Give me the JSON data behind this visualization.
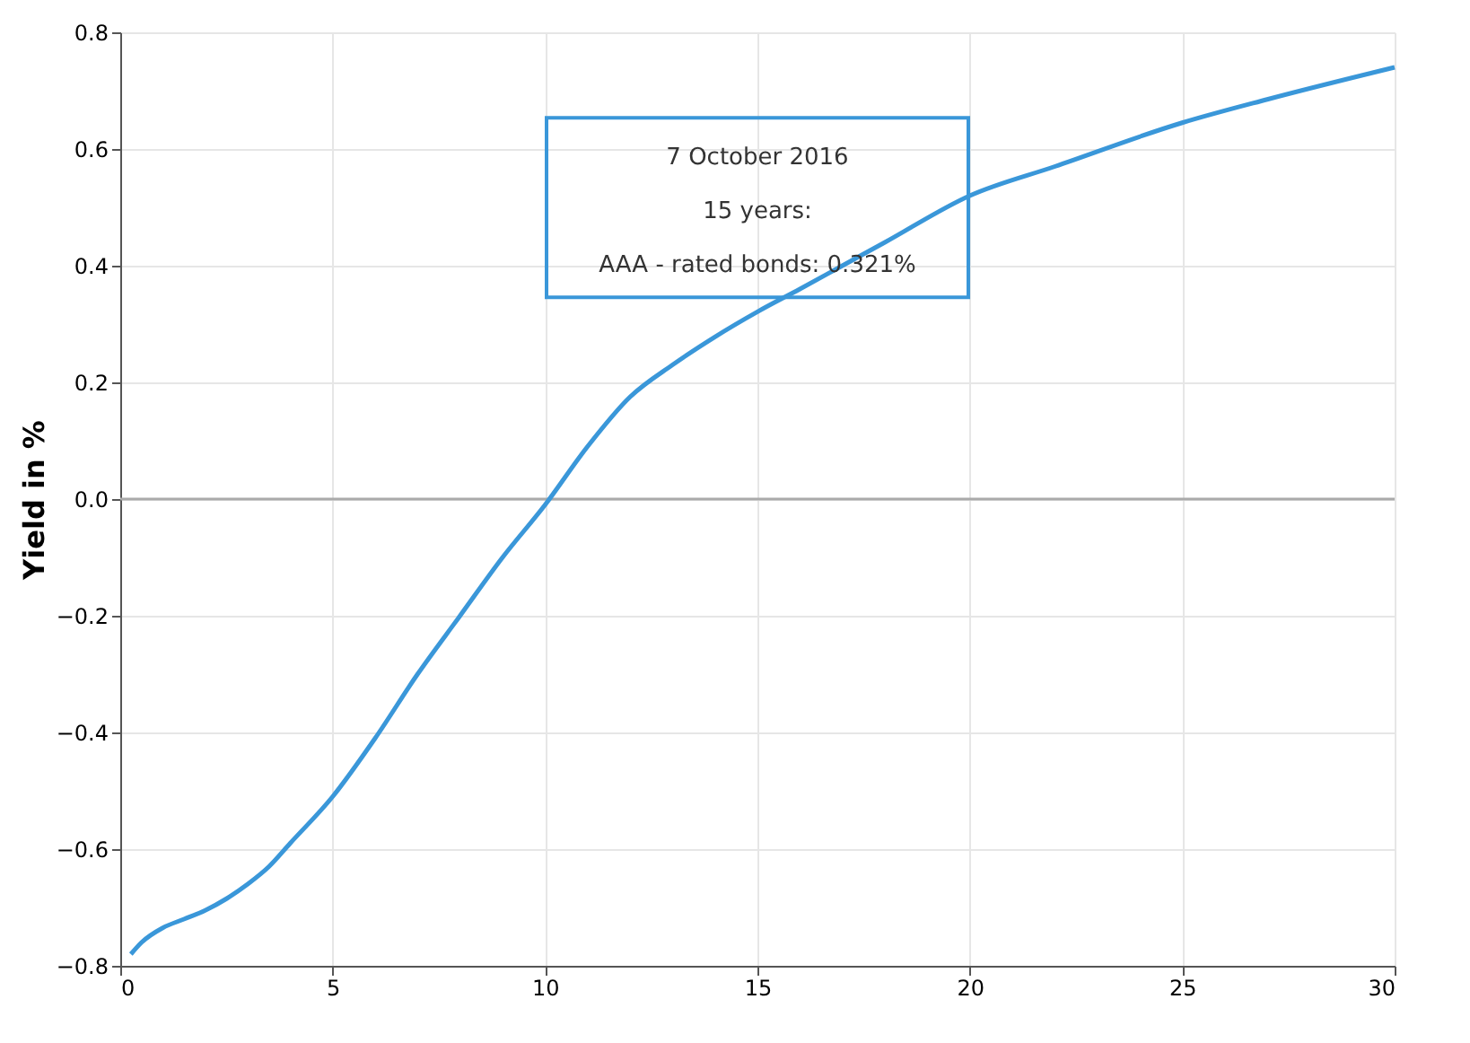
{
  "chart_data": {
    "type": "line",
    "ylabel": "Yield in %",
    "series": [
      {
        "color": "#3a97d9",
        "x": [
          0.25,
          0.5,
          1,
          1.5,
          2,
          2.5,
          3,
          3.5,
          4,
          5,
          6,
          7,
          8,
          9,
          10,
          11,
          12,
          13,
          14,
          15,
          16,
          17,
          18,
          20,
          22,
          25,
          27,
          30
        ],
        "values": [
          -0.78,
          -0.76,
          -0.735,
          -0.72,
          -0.705,
          -0.685,
          -0.66,
          -0.63,
          -0.59,
          -0.51,
          -0.41,
          -0.3,
          -0.2,
          -0.1,
          -0.01,
          0.09,
          0.175,
          0.23,
          0.278,
          0.321,
          0.36,
          0.4,
          0.44,
          0.52,
          0.57,
          0.645,
          0.685,
          0.74
        ]
      }
    ],
    "annotations": [
      "7 October 2016",
      "15 years:",
      {
        "text": "AAA - rated bonds: 0.321%",
        "x": 15,
        "y": 0.321
      }
    ],
    "xlim": [
      0,
      30
    ],
    "xticks": [
      0,
      5,
      10,
      15,
      20,
      25,
      30
    ],
    "ylim": [
      -0.8,
      0.8
    ],
    "yticks": [
      -0.8,
      -0.6,
      -0.4,
      -0.2,
      {
        "value": 0,
        "label": "0.0"
      },
      0.2,
      0.4,
      0.6,
      0.8
    ],
    "ref_lines": [
      {
        "axis": "y",
        "value": 0,
        "color": "#aaaaaa"
      }
    ],
    "grid": true,
    "marker": "none",
    "line_style": "solid"
  }
}
